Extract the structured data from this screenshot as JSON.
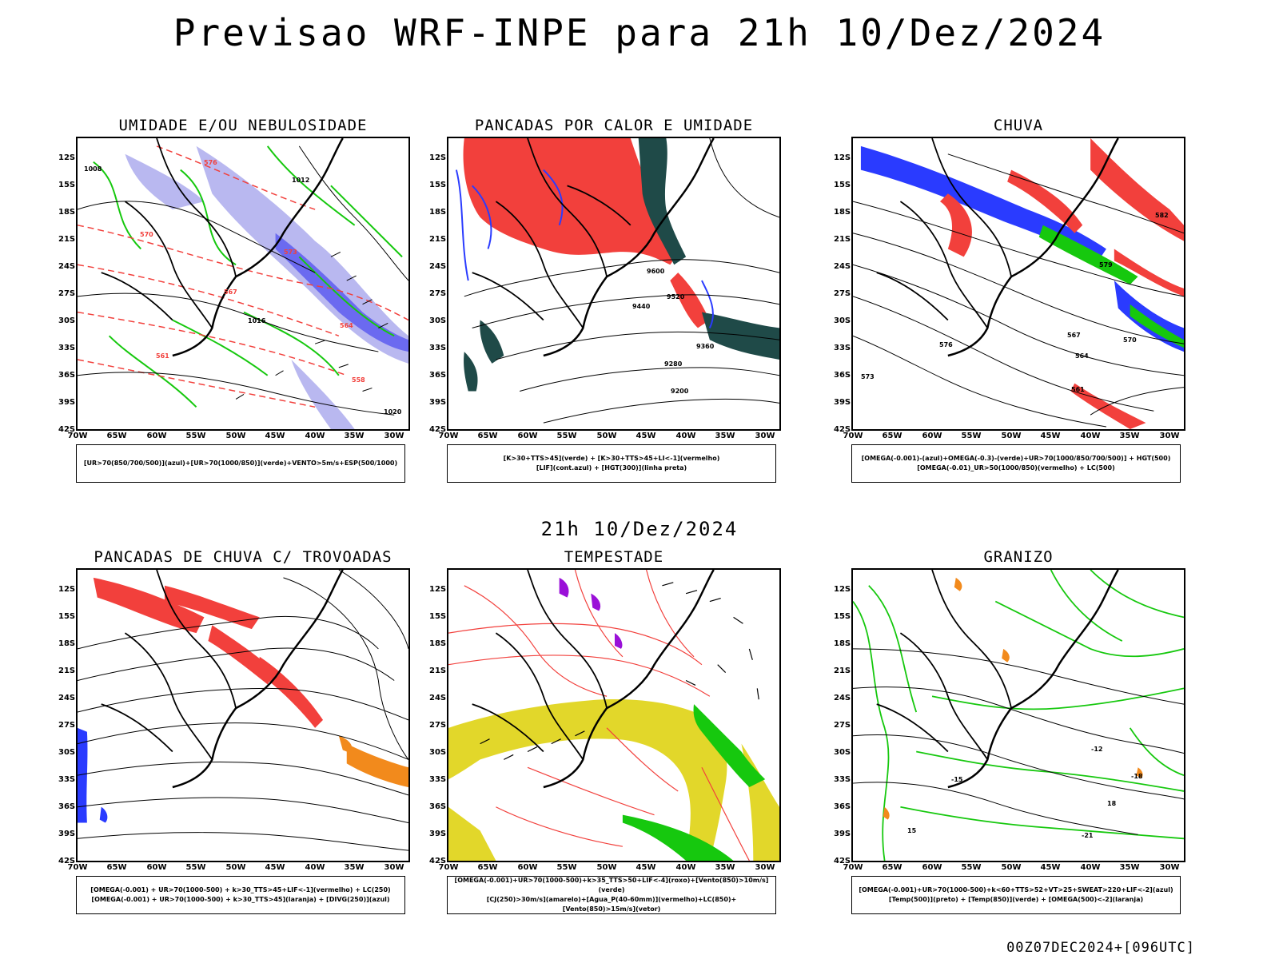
{
  "title": "Previsao WRF-INPE  para 21h 10/Dez/2024",
  "subtitle": "21h 10/Dez/2024",
  "footer": "00Z07DEC2024+[096UTC]",
  "axes": {
    "lat_labels": [
      "12S",
      "15S",
      "18S",
      "21S",
      "24S",
      "27S",
      "30S",
      "33S",
      "36S",
      "39S",
      "42S"
    ],
    "lon_labels": [
      "70W",
      "65W",
      "60W",
      "55W",
      "50W",
      "45W",
      "40W",
      "35W",
      "30W"
    ]
  },
  "panels": [
    {
      "id": "umidade",
      "title": "UMIDADE E/OU NEBULOSIDADE",
      "legend": [
        "[UR>70(850/700/500)](azul)+[UR>70(1000/850)](verde)+VENTO>5m/s+ESP(500/1000)"
      ],
      "contour_labels": [
        "1008",
        "1012",
        "1016",
        "1020",
        "576",
        "573",
        "570",
        "567",
        "564",
        "561",
        "558"
      ]
    },
    {
      "id": "pancadas-calor",
      "title": "PANCADAS POR CALOR E UMIDADE",
      "legend": [
        "[K>30+TTS>45](verde) + [K>30+TTS>45+LI<-1](vermelho)",
        "[LIF](cont.azul) + [HGT(300)](linha preta)"
      ],
      "contour_labels": [
        "9600",
        "9520",
        "9440",
        "9360",
        "9280",
        "9200"
      ]
    },
    {
      "id": "chuva",
      "title": "CHUVA",
      "legend": [
        "[OMEGA(-0.001)-(azul)+OMEGA(-0.3)-(verde)+UR>70(1000/850/700/500)] + HGT(500)",
        "[OMEGA(-0.01)_UR>50(1000/850)(vermelho) + LC(500)"
      ],
      "contour_labels": [
        "582",
        "579",
        "576",
        "573",
        "570",
        "567",
        "564",
        "561"
      ]
    },
    {
      "id": "trovoadas",
      "title": "PANCADAS DE CHUVA C/ TROVOADAS",
      "legend": [
        "[OMEGA(-0.001) + UR>70(1000-500) + k>30_TTS>45+LIF<-1](vermelho) + LC(250)",
        "[OMEGA(-0.001) + UR>70(1000-500) + k>30_TTS>45](laranja) + [DIVG(250)](azul)"
      ],
      "contour_labels": []
    },
    {
      "id": "tempestade",
      "title": "TEMPESTADE",
      "legend": [
        "[OMEGA(-0.001)+UR>70(1000-500)+k>35_TTS>50+LIF<-4](roxo)+[Vento(850)>10m/s](verde)",
        "[CJ(250)>30m/s](amarelo)+[Agua_P(40-60mm)](vermelho)+LC(850)+[Vento(850)>15m/s](vetor)"
      ],
      "contour_labels": []
    },
    {
      "id": "granizo",
      "title": "GRANIZO",
      "legend": [
        "[OMEGA(-0.001)+UR>70(1000-500)+k<60+TTS>52+VT>25+SWEAT>220+LIF<-2](azul)",
        "[Temp(500)](preto) + [Temp(850)](verde) + [OMEGA(500)<-2](laranja)"
      ],
      "contour_labels": [
        "-12",
        "-15",
        "-18",
        "-21",
        "15",
        "18"
      ]
    }
  ],
  "colors": {
    "red": "#f2403c",
    "green": "#16c80e",
    "blue": "#2a3bff",
    "lightblue": "#b9b8f0",
    "midblue": "#7a79ee",
    "darkteal": "#1f4a48",
    "yellow": "#e2d72a",
    "orange": "#f28a1c",
    "purple": "#9a10d8"
  }
}
